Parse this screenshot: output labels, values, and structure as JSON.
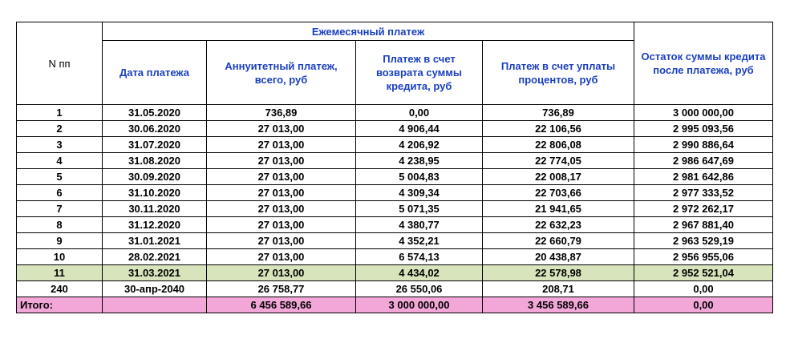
{
  "table": {
    "header": {
      "number": "N пп",
      "group": "Ежемесячный платеж",
      "columns": [
        "Дата платежа",
        "Аннуитетный платеж, всего, руб",
        "Платеж в счет возврата суммы кредита, руб",
        "Платеж в счет уплаты процентов, руб"
      ],
      "balance": "Остаток суммы кредита после платежа, руб"
    },
    "rows": [
      [
        "1",
        "31.05.2020",
        "736,89",
        "0,00",
        "736,89",
        "3 000 000,00"
      ],
      [
        "2",
        "30.06.2020",
        "27 013,00",
        "4 906,44",
        "22 106,56",
        "2 995 093,56"
      ],
      [
        "3",
        "31.07.2020",
        "27 013,00",
        "4 206,92",
        "22 806,08",
        "2 990 886,64"
      ],
      [
        "4",
        "31.08.2020",
        "27 013,00",
        "4 238,95",
        "22 774,05",
        "2 986 647,69"
      ],
      [
        "5",
        "30.09.2020",
        "27 013,00",
        "5 004,83",
        "22 008,17",
        "2 981 642,86"
      ],
      [
        "6",
        "31.10.2020",
        "27 013,00",
        "4 309,34",
        "22 703,66",
        "2 977 333,52"
      ],
      [
        "7",
        "30.11.2020",
        "27 013,00",
        "5 071,35",
        "21 941,65",
        "2 972 262,17"
      ],
      [
        "8",
        "31.12.2020",
        "27 013,00",
        "4 380,77",
        "22 632,23",
        "2 967 881,40"
      ],
      [
        "9",
        "31.01.2021",
        "27 013,00",
        "4 352,21",
        "22 660,79",
        "2 963 529,19"
      ],
      [
        "10",
        "28.02.2021",
        "27 013,00",
        "6 574,13",
        "20 438,87",
        "2 956 955,06"
      ],
      [
        "11",
        "31.03.2021",
        "27 013,00",
        "4 434,02",
        "22 578,98",
        "2 952 521,04"
      ],
      [
        "240",
        "30-апр-2040",
        "26 758,77",
        "26 550,06",
        "208,71",
        "0,00"
      ]
    ],
    "total": {
      "label": "Итого:",
      "cells": [
        "6 456 589,66",
        "3 000 000,00",
        "3 456 589,66",
        "0,00"
      ]
    }
  }
}
